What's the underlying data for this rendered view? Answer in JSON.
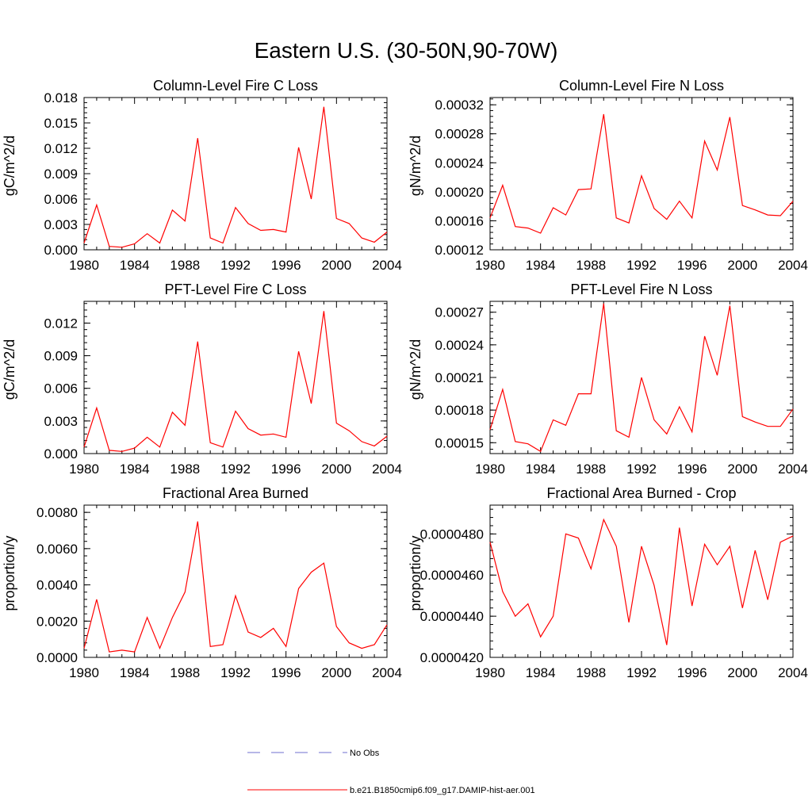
{
  "title": "Eastern U.S. (30-50N,90-70W)",
  "colors": {
    "model_line": "#ff0000",
    "obs_line": "#6f6fcf",
    "axis": "#000000"
  },
  "legend": [
    {
      "label": "No Obs",
      "style": "dashed",
      "color": "#6f6fcf"
    },
    {
      "label": "b.e21.B1850cmip6.f09_g17.DAMIP-hist-aer.001",
      "style": "solid",
      "color": "#ff0000"
    }
  ],
  "chart_data": [
    {
      "type": "line",
      "title": "Column-Level Fire C Loss",
      "ylabel": "gC/m^2/d",
      "xlim": [
        1980,
        2004
      ],
      "ylim": [
        0,
        0.018
      ],
      "xticks": [
        "1980",
        "1984",
        "1988",
        "1992",
        "1996",
        "2000",
        "2004"
      ],
      "yticks": [
        "0.000",
        "0.003",
        "0.006",
        "0.009",
        "0.012",
        "0.015",
        "0.018"
      ],
      "series": [
        {
          "color": "#ff0000",
          "x": [
            1980,
            1981,
            1982,
            1983,
            1984,
            1985,
            1986,
            1987,
            1988,
            1989,
            1990,
            1991,
            1992,
            1993,
            1994,
            1995,
            1996,
            1997,
            1998,
            1999,
            2000,
            2001,
            2002,
            2003,
            2004
          ],
          "values": [
            0.0008,
            0.0053,
            0.0004,
            0.0003,
            0.0007,
            0.0019,
            0.0008,
            0.0047,
            0.0034,
            0.0132,
            0.0014,
            0.0008,
            0.005,
            0.0031,
            0.0023,
            0.0024,
            0.0021,
            0.0121,
            0.006,
            0.0169,
            0.0037,
            0.0031,
            0.0014,
            0.0009,
            0.0021
          ]
        }
      ]
    },
    {
      "type": "line",
      "title": "Column-Level Fire N Loss",
      "ylabel": "gN/m^2/d",
      "xlim": [
        1980,
        2004
      ],
      "ylim": [
        0.00012,
        0.00033
      ],
      "xticks": [
        "1980",
        "1984",
        "1988",
        "1992",
        "1996",
        "2000",
        "2004"
      ],
      "yticks": [
        "0.00012",
        "0.00016",
        "0.00020",
        "0.00024",
        "0.00028",
        "0.00032"
      ],
      "series": [
        {
          "color": "#ff0000",
          "x": [
            1980,
            1981,
            1982,
            1983,
            1984,
            1985,
            1986,
            1987,
            1988,
            1989,
            1990,
            1991,
            1992,
            1993,
            1994,
            1995,
            1996,
            1997,
            1998,
            1999,
            2000,
            2001,
            2002,
            2003,
            2004
          ],
          "values": [
            0.000164,
            0.000209,
            0.000152,
            0.00015,
            0.000143,
            0.000178,
            0.000168,
            0.000203,
            0.000204,
            0.000307,
            0.000164,
            0.000157,
            0.000222,
            0.000177,
            0.000162,
            0.000187,
            0.000164,
            0.00027,
            0.00023,
            0.000303,
            0.000181,
            0.000175,
            0.000168,
            0.000167,
            0.000187
          ]
        }
      ]
    },
    {
      "type": "line",
      "title": "PFT-Level Fire C Loss",
      "ylabel": "gC/m^2/d",
      "xlim": [
        1980,
        2004
      ],
      "ylim": [
        0,
        0.014
      ],
      "xticks": [
        "1980",
        "1984",
        "1988",
        "1992",
        "1996",
        "2000",
        "2004"
      ],
      "yticks": [
        "0.000",
        "0.003",
        "0.006",
        "0.009",
        "0.012"
      ],
      "series": [
        {
          "color": "#ff0000",
          "x": [
            1980,
            1981,
            1982,
            1983,
            1984,
            1985,
            1986,
            1987,
            1988,
            1989,
            1990,
            1991,
            1992,
            1993,
            1994,
            1995,
            1996,
            1997,
            1998,
            1999,
            2000,
            2001,
            2002,
            2003,
            2004
          ],
          "values": [
            0.0006,
            0.0042,
            0.0003,
            0.0002,
            0.0005,
            0.0015,
            0.0006,
            0.0038,
            0.0026,
            0.0103,
            0.001,
            0.0006,
            0.0039,
            0.0023,
            0.0017,
            0.0018,
            0.0015,
            0.0094,
            0.0046,
            0.0131,
            0.0028,
            0.0021,
            0.0011,
            0.0007,
            0.0016
          ]
        }
      ]
    },
    {
      "type": "line",
      "title": "PFT-Level Fire N Loss",
      "ylabel": "gN/m^2/d",
      "xlim": [
        1980,
        2004
      ],
      "ylim": [
        0.00014,
        0.00028
      ],
      "xticks": [
        "1980",
        "1984",
        "1988",
        "1992",
        "1996",
        "2000",
        "2004"
      ],
      "yticks": [
        "0.00015",
        "0.00018",
        "0.00021",
        "0.00024",
        "0.00027"
      ],
      "series": [
        {
          "color": "#ff0000",
          "x": [
            1980,
            1981,
            1982,
            1983,
            1984,
            1985,
            1986,
            1987,
            1988,
            1989,
            1990,
            1991,
            1992,
            1993,
            1994,
            1995,
            1996,
            1997,
            1998,
            1999,
            2000,
            2001,
            2002,
            2003,
            2004
          ],
          "values": [
            0.000162,
            0.000199,
            0.000151,
            0.000149,
            0.000142,
            0.000171,
            0.000166,
            0.000195,
            0.000195,
            0.000278,
            0.000161,
            0.000155,
            0.00021,
            0.000171,
            0.000158,
            0.000183,
            0.00016,
            0.000248,
            0.000212,
            0.000276,
            0.000174,
            0.000169,
            0.000165,
            0.000165,
            0.000181
          ]
        }
      ]
    },
    {
      "type": "line",
      "title": "Fractional Area Burned",
      "ylabel": "proportion/y",
      "xlim": [
        1980,
        2004
      ],
      "ylim": [
        0,
        0.0084
      ],
      "xticks": [
        "1980",
        "1984",
        "1988",
        "1992",
        "1996",
        "2000",
        "2004"
      ],
      "yticks": [
        "0.0000",
        "0.0020",
        "0.0040",
        "0.0060",
        "0.0080"
      ],
      "series": [
        {
          "color": "#ff0000",
          "x": [
            1980,
            1981,
            1982,
            1983,
            1984,
            1985,
            1986,
            1987,
            1988,
            1989,
            1990,
            1991,
            1992,
            1993,
            1994,
            1995,
            1996,
            1997,
            1998,
            1999,
            2000,
            2001,
            2002,
            2003,
            2004
          ],
          "values": [
            0.0005,
            0.0032,
            0.0003,
            0.0004,
            0.0003,
            0.0022,
            0.0005,
            0.0022,
            0.0036,
            0.0075,
            0.0006,
            0.0007,
            0.0034,
            0.0014,
            0.0011,
            0.0016,
            0.0006,
            0.0038,
            0.0047,
            0.0052,
            0.0017,
            0.0008,
            0.0005,
            0.0007,
            0.0018
          ]
        }
      ]
    },
    {
      "type": "line",
      "title": "Fractional Area Burned - Crop",
      "ylabel": "proportion/y",
      "xlim": [
        1980,
        2004
      ],
      "ylim": [
        4.2e-05,
        4.94e-05
      ],
      "xticks": [
        "1980",
        "1984",
        "1988",
        "1992",
        "1996",
        "2000",
        "2004"
      ],
      "yticks": [
        "0.0000420",
        "0.0000440",
        "0.0000460",
        "0.0000480"
      ],
      "series": [
        {
          "color": "#ff0000",
          "x": [
            1980,
            1981,
            1982,
            1983,
            1984,
            1985,
            1986,
            1987,
            1988,
            1989,
            1990,
            1991,
            1992,
            1993,
            1994,
            1995,
            1996,
            1997,
            1998,
            1999,
            2000,
            2001,
            2002,
            2003,
            2004
          ],
          "values": [
            4.76e-05,
            4.52e-05,
            4.4e-05,
            4.46e-05,
            4.3e-05,
            4.4e-05,
            4.8e-05,
            4.78e-05,
            4.63e-05,
            4.87e-05,
            4.74e-05,
            4.37e-05,
            4.74e-05,
            4.55e-05,
            4.26e-05,
            4.83e-05,
            4.45e-05,
            4.75e-05,
            4.65e-05,
            4.74e-05,
            4.44e-05,
            4.72e-05,
            4.48e-05,
            4.76e-05,
            4.79e-05
          ]
        }
      ]
    }
  ]
}
